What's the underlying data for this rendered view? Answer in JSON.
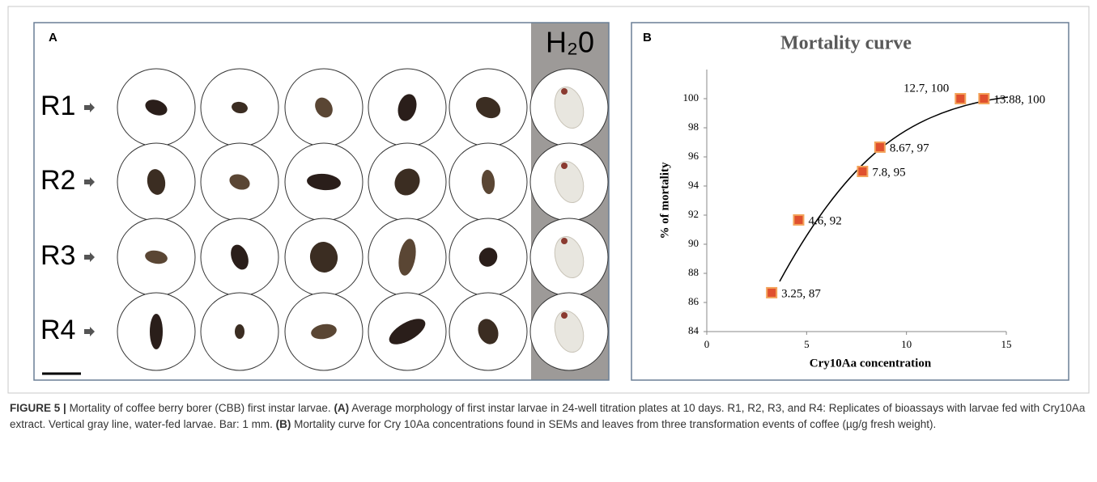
{
  "panel_a": {
    "label": "A",
    "control_label": "H₂0",
    "rows": [
      "R1",
      "R2",
      "R3",
      "R4"
    ]
  },
  "panel_b": {
    "label": "B",
    "chart_data": {
      "type": "scatter",
      "title": "Mortality curve",
      "x_label": "Cry10Aa concentration",
      "y_label": "% of mortality",
      "x": [
        3.25,
        4.6,
        7.8,
        8.67,
        12.7,
        13.88
      ],
      "values": [
        86.67,
        91.67,
        95,
        96.67,
        100,
        100
      ],
      "value_labels": [
        "3.25, 87",
        "4.6, 92",
        "7.8, 95",
        "8.67, 97",
        "12.7, 100",
        "13.88, 100"
      ],
      "color": "#e0502e",
      "xlim": [
        0,
        15
      ],
      "xticks": [
        0,
        5,
        10,
        15
      ],
      "ylim": [
        84,
        102
      ],
      "yticks": [
        84,
        86,
        88,
        90,
        92,
        94,
        96,
        98,
        100
      ]
    }
  },
  "caption": {
    "label": "FIGURE 5 |",
    "text1": "Mortality of coffee berry borer (CBB) first instar larvae.",
    "a": "(A)",
    "text2": "Average morphology of first instar larvae in 24-well titration plates at 10 days. R1, R2, R3, and R4: Replicates of bioassays with larvae fed with Cry10Aa extract. Vertical gray line, water-fed larvae. Bar: 1 mm.",
    "b": "(B)",
    "text3": "Mortality curve for Cry 10Aa concentrations found in SEMs and leaves from three transformation events of coffee (µg/g fresh weight)."
  }
}
